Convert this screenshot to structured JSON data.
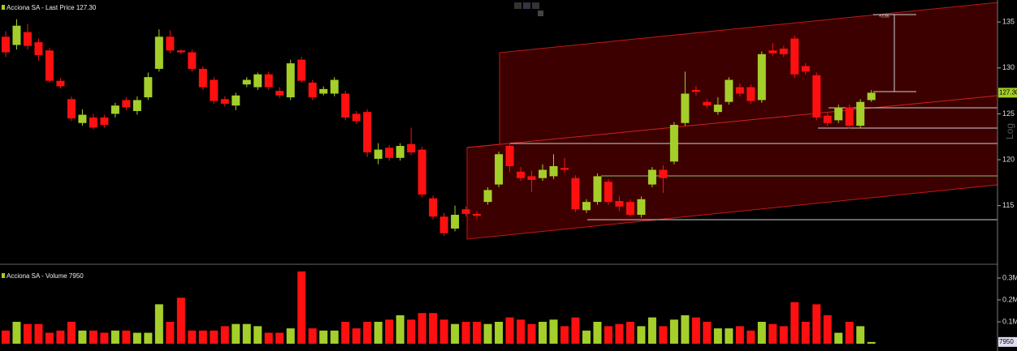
{
  "chart_data": [
    {
      "type": "candlestick",
      "title": "Acciona SA - Last Price 127.30",
      "scale_label": "Log",
      "annotation": "+3.85",
      "last_value_label": "127.30",
      "up_color": "#a4cf2a",
      "down_color": "#ff1010",
      "open": [
        133.4,
        132.5,
        133.9,
        132.8,
        131.9,
        128.6,
        126.6,
        124.0,
        124.6,
        124.6,
        125.0,
        126.5,
        125.3,
        126.8,
        129.9,
        133.4,
        131.9,
        131.7,
        129.9,
        128.7,
        126.6,
        125.9,
        128.2,
        127.9,
        129.3,
        127.5,
        126.8,
        130.9,
        128.4,
        127.2,
        127.2,
        127.2,
        125.0,
        125.2,
        120.1,
        121.3,
        120.2,
        121.7,
        121.1,
        115.8,
        113.8,
        112.5,
        114.6,
        114.1,
        115.4,
        117.3,
        121.5,
        118.7,
        118.2,
        118.0,
        118.2,
        119.1,
        118.0,
        114.5,
        115.4,
        117.6,
        115.5,
        115.4,
        114.0,
        117.3,
        118.9,
        119.8,
        124.0,
        127.6,
        126.3,
        125.2,
        126.3,
        127.9,
        127.9,
        126.5,
        131.9,
        132.1,
        133.2,
        130.2,
        129.2,
        124.8,
        124.3,
        125.7,
        123.7,
        126.5
      ],
      "high": [
        134.0,
        135.3,
        134.8,
        133.2,
        132.2,
        128.9,
        126.9,
        125.5,
        125.0,
        124.9,
        126.2,
        126.8,
        126.9,
        129.5,
        134.2,
        134.1,
        132.0,
        132.0,
        130.2,
        129.0,
        126.9,
        127.3,
        129.0,
        129.5,
        129.6,
        127.9,
        130.9,
        131.2,
        128.7,
        128.0,
        129.0,
        127.5,
        125.3,
        125.5,
        121.8,
        121.6,
        121.8,
        123.5,
        121.4,
        116.1,
        114.2,
        115.0,
        114.9,
        114.4,
        117.0,
        120.9,
        121.8,
        119.2,
        118.8,
        119.5,
        120.6,
        120.2,
        118.3,
        115.7,
        118.5,
        117.9,
        116.0,
        115.7,
        116.0,
        119.2,
        119.4,
        124.1,
        129.6,
        128.0,
        126.6,
        126.8,
        129.0,
        128.3,
        128.2,
        131.8,
        132.7,
        132.4,
        133.5,
        130.5,
        129.5,
        125.1,
        126.0,
        126.0,
        126.6,
        127.6
      ],
      "low": [
        131.2,
        132.0,
        132.0,
        130.8,
        128.4,
        127.8,
        124.2,
        123.7,
        123.3,
        123.5,
        124.6,
        125.4,
        124.9,
        126.5,
        129.6,
        131.6,
        131.5,
        129.6,
        127.6,
        126.1,
        125.8,
        125.4,
        127.9,
        127.6,
        127.6,
        126.7,
        126.5,
        128.4,
        126.5,
        127.0,
        126.9,
        124.3,
        123.9,
        120.3,
        119.5,
        119.9,
        119.9,
        120.5,
        115.9,
        113.5,
        111.7,
        112.2,
        113.8,
        113.6,
        115.1,
        117.0,
        118.7,
        117.7,
        116.5,
        117.7,
        117.9,
        118.6,
        114.3,
        114.2,
        115.1,
        115.1,
        114.4,
        113.8,
        113.7,
        117.0,
        116.4,
        119.5,
        123.7,
        127.0,
        125.6,
        124.9,
        126.0,
        126.9,
        126.1,
        126.2,
        131.3,
        131.2,
        128.9,
        129.3,
        124.3,
        123.7,
        124.0,
        123.4,
        123.4,
        126.3
      ],
      "close": [
        131.7,
        134.6,
        132.4,
        131.4,
        128.6,
        128.0,
        124.5,
        124.9,
        123.5,
        123.8,
        125.9,
        125.7,
        126.5,
        129.0,
        133.4,
        131.9,
        131.7,
        129.9,
        127.9,
        126.4,
        126.1,
        127.0,
        128.7,
        129.3,
        127.9,
        127.0,
        130.5,
        128.6,
        126.8,
        127.7,
        128.7,
        124.6,
        124.2,
        120.8,
        121.1,
        120.2,
        121.5,
        120.8,
        116.2,
        113.8,
        112.0,
        114.0,
        114.1,
        113.9,
        116.7,
        120.6,
        119.3,
        118.0,
        117.8,
        118.9,
        119.3,
        118.9,
        114.6,
        115.4,
        118.2,
        115.4,
        114.9,
        114.0,
        115.7,
        118.9,
        118.0,
        123.8,
        127.2,
        127.4,
        125.9,
        126.0,
        128.7,
        127.2,
        126.4,
        131.5,
        131.6,
        131.5,
        129.3,
        129.6,
        124.6,
        124.0,
        125.7,
        123.7,
        126.3,
        127.3
      ],
      "ylim": [
        108.7,
        137.4
      ],
      "yticks": [
        115,
        120,
        125,
        130,
        135
      ]
    },
    {
      "type": "volume",
      "title": "Acciona SA - Volume 7950",
      "last_value_label": "7950",
      "values": [
        60000,
        100000,
        90000,
        90000,
        50000,
        60000,
        100000,
        60000,
        60000,
        50000,
        60000,
        60000,
        50000,
        50000,
        180000,
        100000,
        210000,
        60000,
        60000,
        60000,
        80000,
        90000,
        90000,
        80000,
        50000,
        50000,
        70000,
        330000,
        70000,
        60000,
        60000,
        100000,
        70000,
        100000,
        100000,
        110000,
        130000,
        110000,
        140000,
        140000,
        110000,
        90000,
        100000,
        100000,
        90000,
        100000,
        120000,
        110000,
        90000,
        100000,
        110000,
        80000,
        120000,
        60000,
        100000,
        80000,
        90000,
        100000,
        80000,
        120000,
        80000,
        110000,
        130000,
        120000,
        100000,
        70000,
        70000,
        80000,
        60000,
        100000,
        90000,
        80000,
        190000,
        100000,
        180000,
        130000,
        50000,
        100000,
        80000,
        7950
      ],
      "ylim": [
        0,
        348000
      ],
      "yticks": [
        {
          "value": 100000,
          "label": "0.1M"
        },
        {
          "value": 200000,
          "label": "0.2M"
        },
        {
          "value": 300000,
          "label": "0.3M"
        }
      ]
    }
  ]
}
